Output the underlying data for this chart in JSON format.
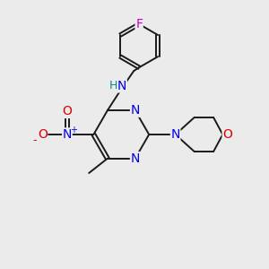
{
  "background_color": "#ebebeb",
  "bond_color": "#1a1a1a",
  "atom_colors": {
    "N": "#0000ee",
    "O": "#dd0000",
    "F": "#cc00cc",
    "C": "#1a1a1a",
    "H": "#008888"
  },
  "font_size": 10,
  "fig_size": [
    3.0,
    3.0
  ],
  "dpi": 100,
  "xlim": [
    0,
    10
  ],
  "ylim": [
    0,
    10
  ]
}
